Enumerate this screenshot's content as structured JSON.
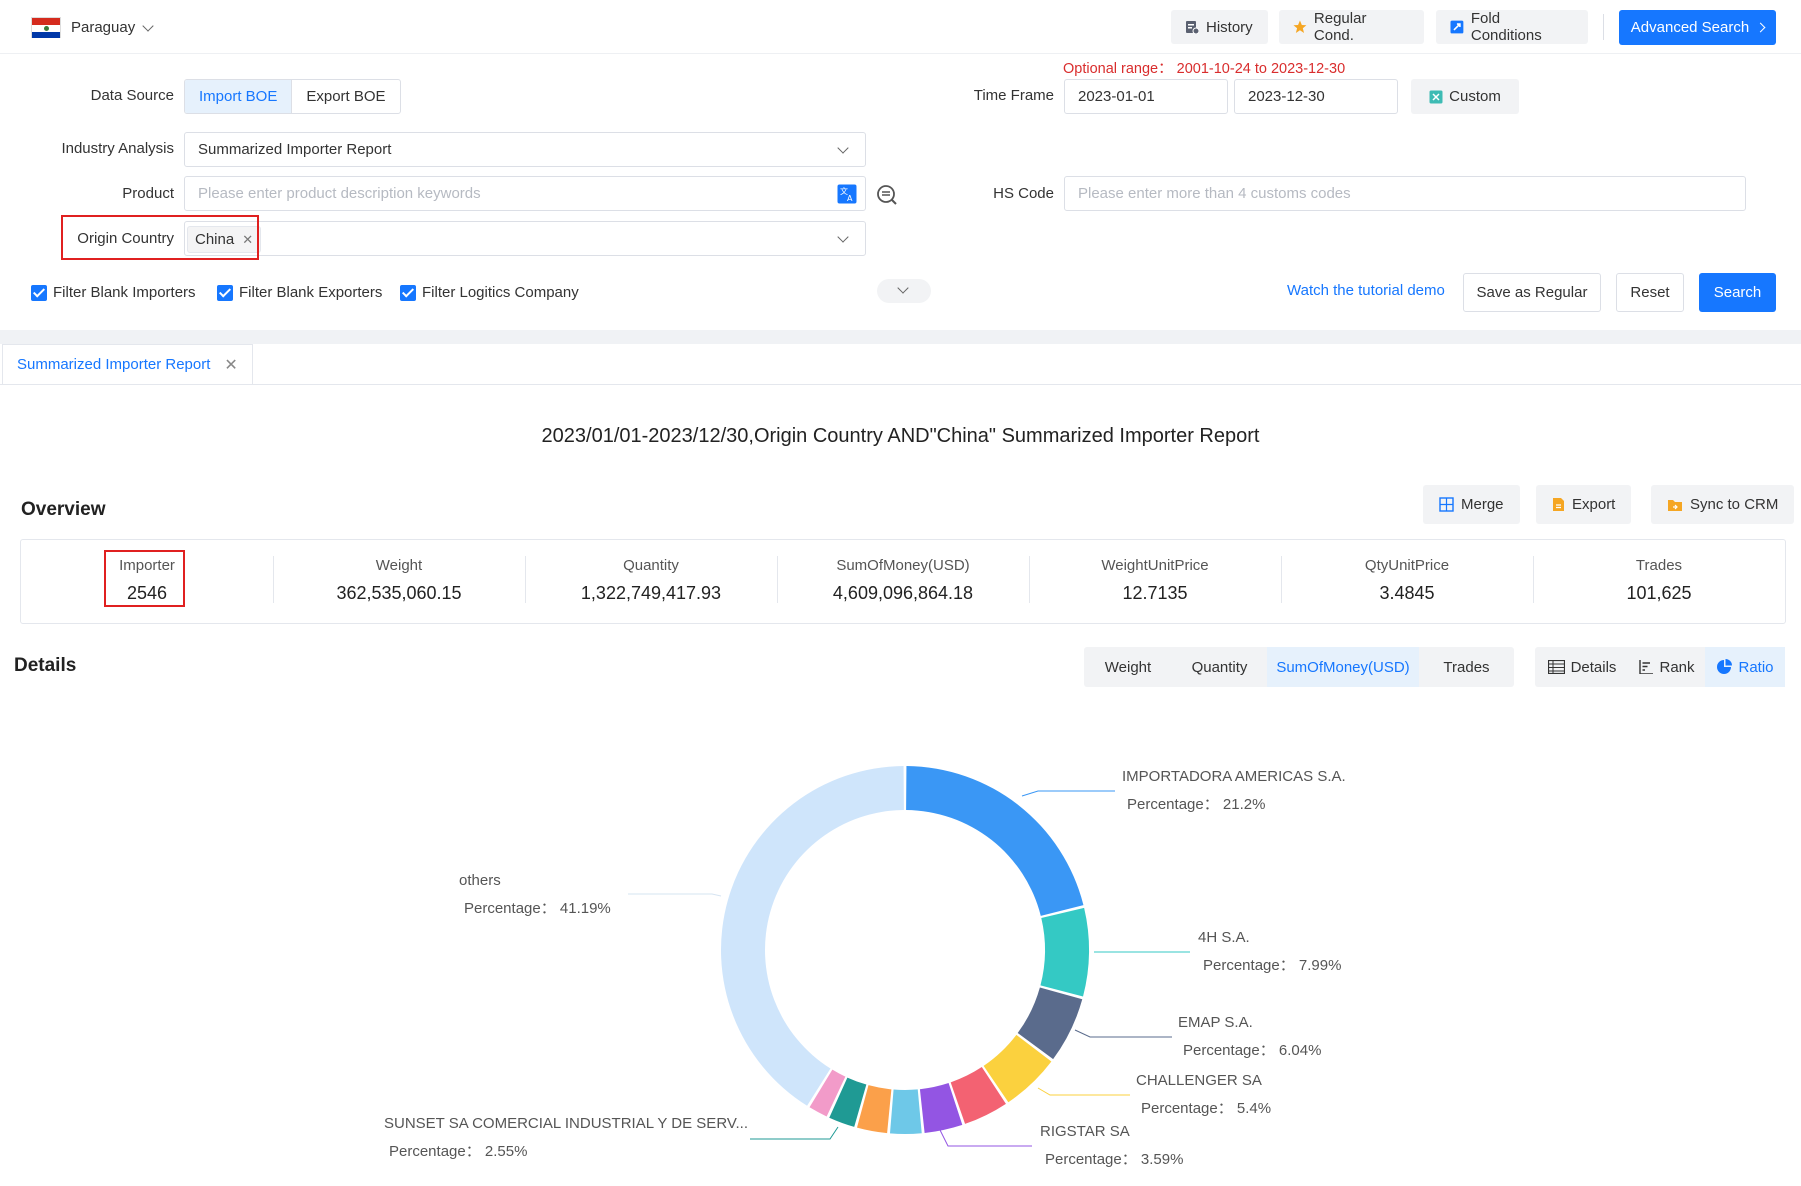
{
  "header": {
    "country": "Paraguay",
    "buttons": {
      "history": "History",
      "regular": "Regular Cond.",
      "fold": "Fold Conditions",
      "advanced": "Advanced Search"
    }
  },
  "form": {
    "optional_range": "Optional range： 2001-10-24 to 2023-12-30",
    "data_source": {
      "label": "Data Source",
      "options": [
        "Import BOE",
        "Export BOE"
      ],
      "selected": "Import BOE"
    },
    "time_frame": {
      "label": "Time Frame",
      "start": "2023-01-01",
      "end": "2023-12-30",
      "custom": "Custom"
    },
    "industry": {
      "label": "Industry Analysis",
      "value": "Summarized Importer Report"
    },
    "product": {
      "label": "Product",
      "placeholder": "Please enter product description keywords"
    },
    "hs_code": {
      "label": "HS Code",
      "placeholder": "Please enter more than 4 customs codes"
    },
    "origin": {
      "label": "Origin Country",
      "tag": "China"
    },
    "filters": [
      "Filter Blank Importers",
      "Filter Blank Exporters",
      "Filter Logitics Company"
    ],
    "tutorial": "Watch the tutorial demo",
    "save_regular": "Save as Regular",
    "reset": "Reset",
    "search": "Search"
  },
  "tab": {
    "label": "Summarized Importer Report"
  },
  "report_title": "2023/01/01-2023/12/30,Origin Country AND\"China\" Summarized Importer Report",
  "overview": {
    "title": "Overview",
    "actions": [
      "Merge",
      "Export",
      "Sync to CRM"
    ],
    "metrics": [
      {
        "label": "Importer",
        "value": "2546"
      },
      {
        "label": "Weight",
        "value": "362,535,060.15"
      },
      {
        "label": "Quantity",
        "value": "1,322,749,417.93"
      },
      {
        "label": "SumOfMoney(USD)",
        "value": "4,609,096,864.18"
      },
      {
        "label": "WeightUnitPrice",
        "value": "12.7135"
      },
      {
        "label": "QtyUnitPrice",
        "value": "3.4845"
      },
      {
        "label": "Trades",
        "value": "101,625"
      }
    ]
  },
  "details": {
    "title": "Details",
    "metric_tabs": [
      "Weight",
      "Quantity",
      "SumOfMoney(USD)",
      "Trades"
    ],
    "metric_selected": "SumOfMoney(USD)",
    "view_tabs": [
      "Details",
      "Rank",
      "Ratio"
    ],
    "view_selected": "Ratio",
    "percentage_prefix": "Percentage： "
  },
  "chart_data": {
    "type": "pie",
    "variant": "donut",
    "start": "top, clockwise",
    "slices": [
      {
        "name": "IMPORTADORA AMERICAS S.A.",
        "value": 21.2,
        "label": "21.2%",
        "color": "#3a97f5",
        "labeled": true
      },
      {
        "name": "4H S.A.",
        "value": 7.99,
        "label": "7.99%",
        "color": "#34c9c4",
        "labeled": true
      },
      {
        "name": "EMAP S.A.",
        "value": 6.04,
        "label": "6.04%",
        "color": "#5a6b8c",
        "labeled": true
      },
      {
        "name": "CHALLENGER SA",
        "value": 5.4,
        "label": "5.4%",
        "color": "#fbd13e",
        "labeled": true
      },
      {
        "name": "",
        "value": 4.2,
        "color": "#f36272",
        "labeled": false
      },
      {
        "name": "RIGSTAR SA",
        "value": 3.59,
        "label": "3.59%",
        "color": "#9355e3",
        "labeled": true
      },
      {
        "name": "",
        "value": 3.0,
        "color": "#6ec8e8",
        "labeled": false
      },
      {
        "name": "",
        "value": 2.9,
        "color": "#fba04a",
        "labeled": false
      },
      {
        "name": "SUNSET SA COMERCIAL INDUSTRIAL Y DE SERV...",
        "value": 2.55,
        "label": "2.55%",
        "color": "#1f9a94",
        "labeled": true
      },
      {
        "name": "",
        "value": 1.93,
        "color": "#f29bc9",
        "labeled": false
      },
      {
        "name": "others",
        "value": 41.19,
        "label": "41.19%",
        "color": "#cfe5fb",
        "labeled": true
      }
    ]
  }
}
